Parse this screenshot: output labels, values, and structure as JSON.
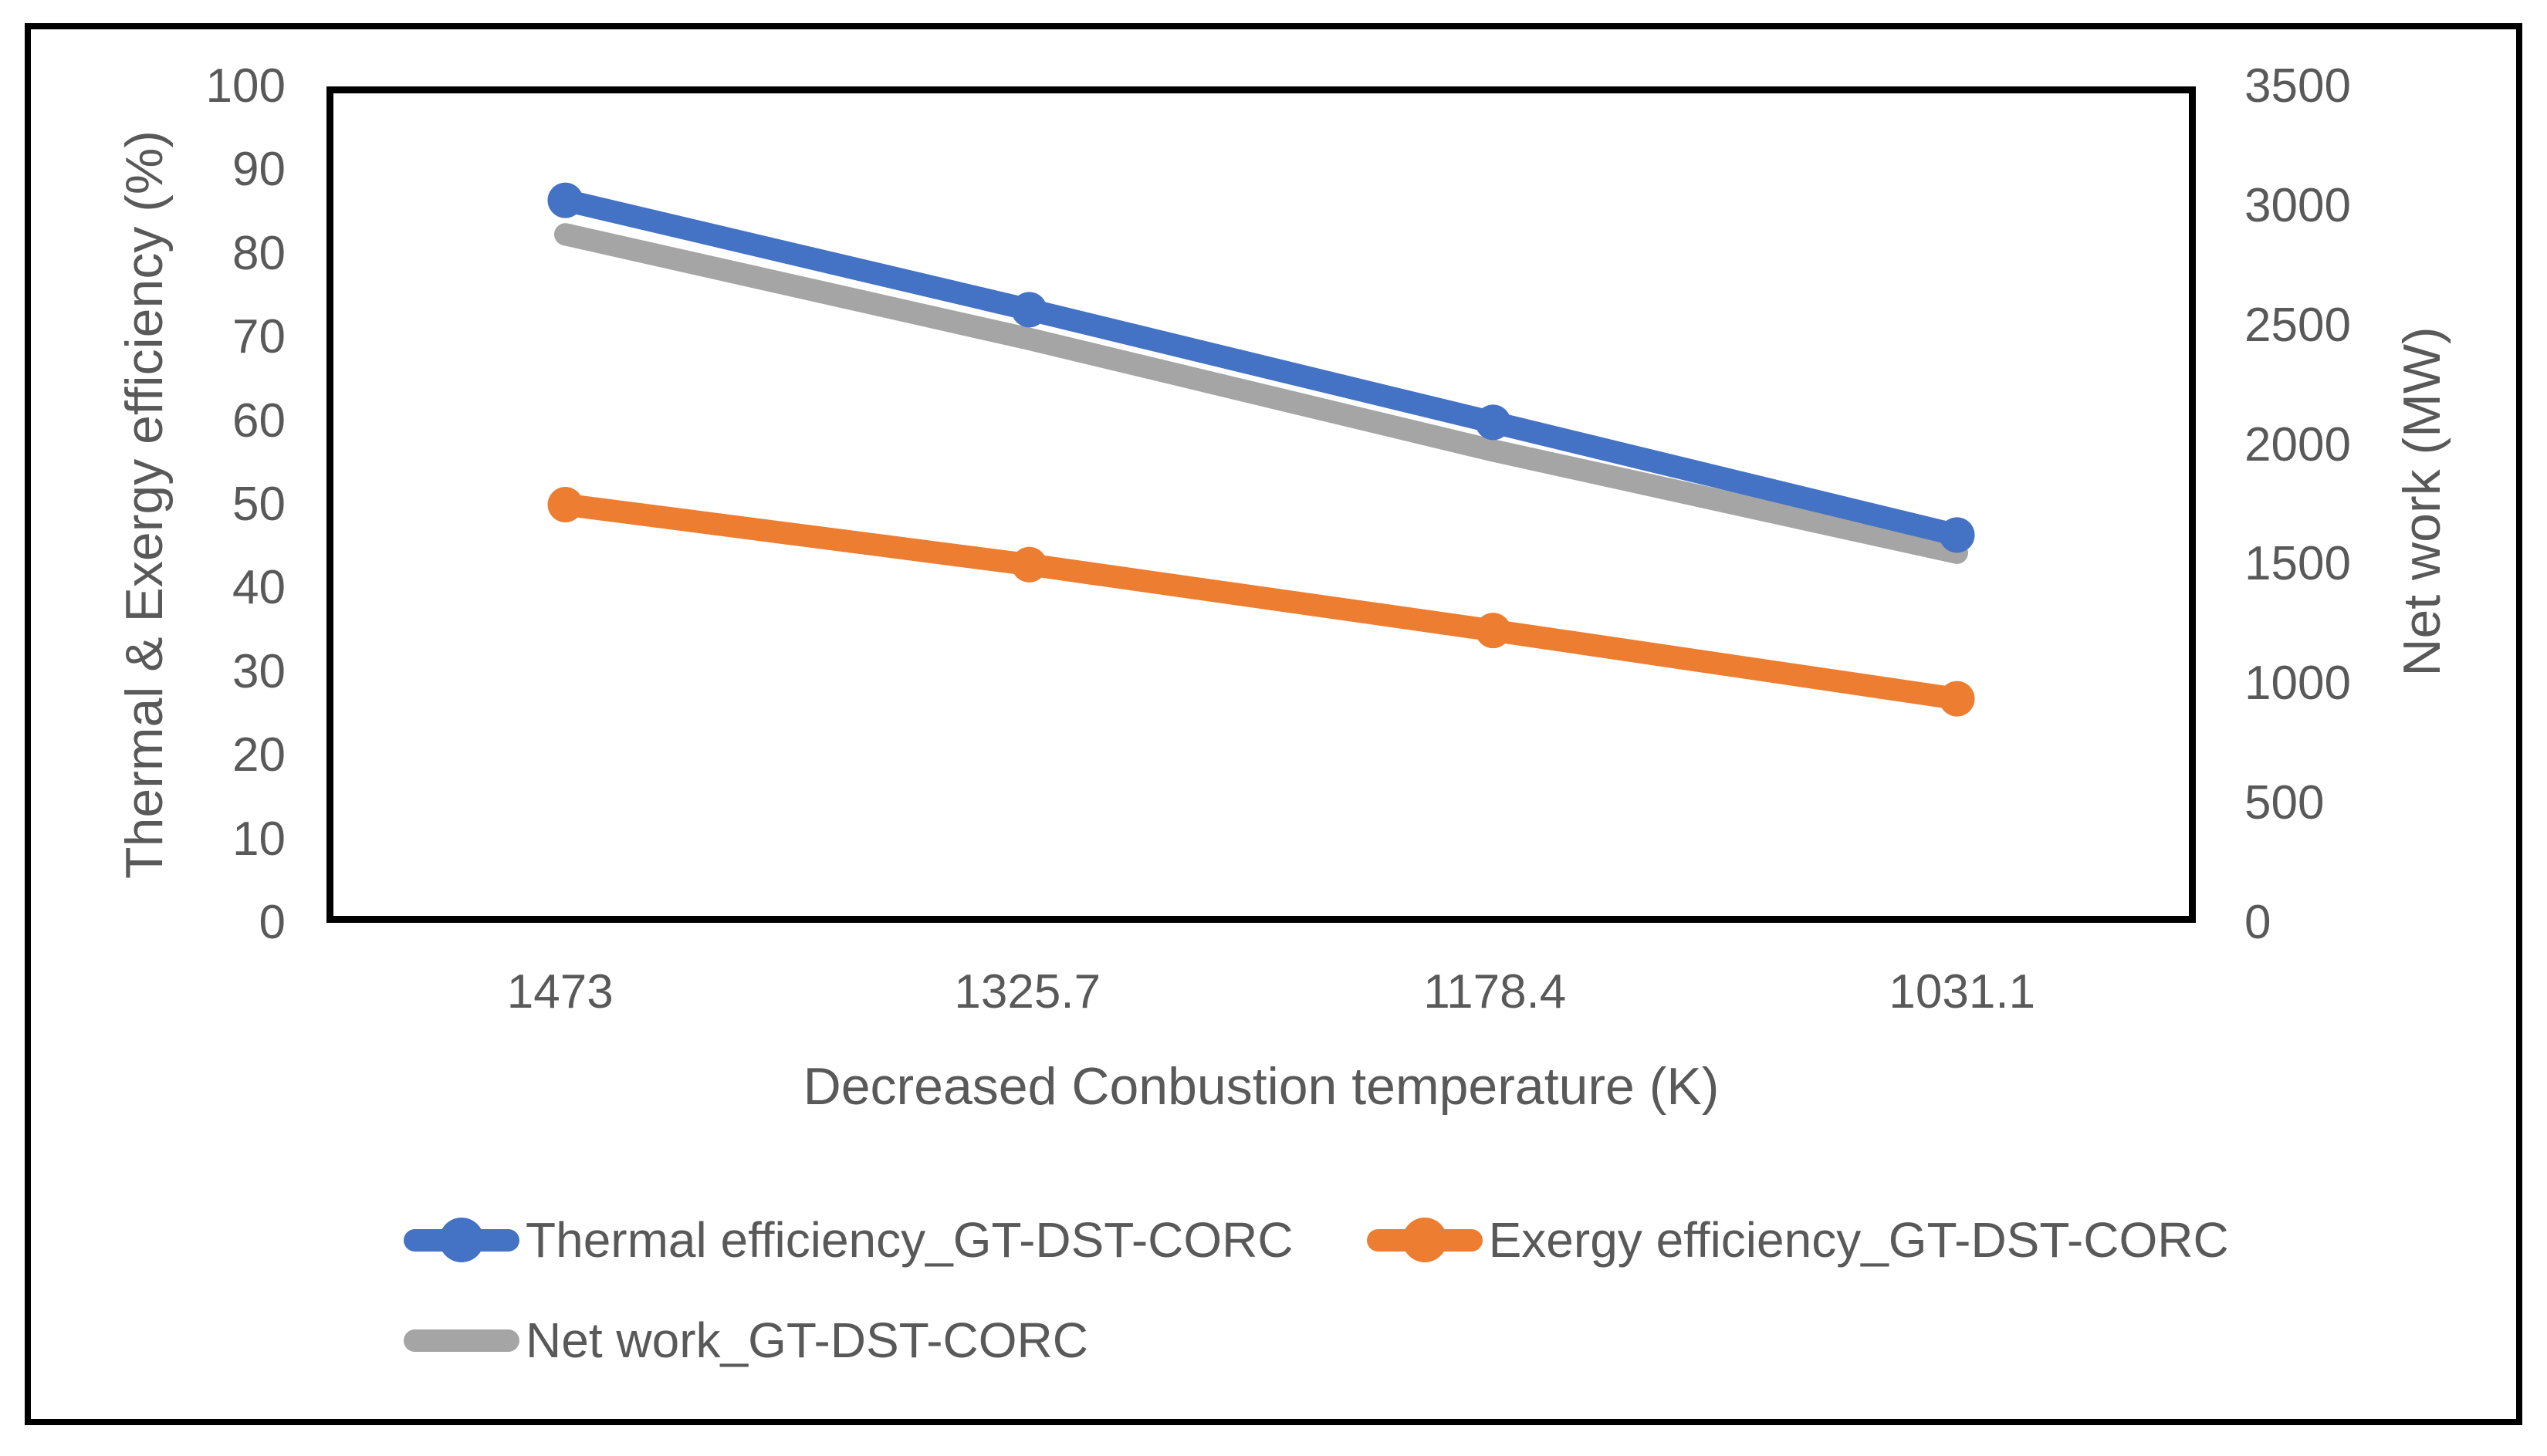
{
  "chart_data": {
    "type": "line",
    "categories": [
      "1473",
      "1325.7",
      "1178.4",
      "1031.1"
    ],
    "xlabel": "Decreased Conbustion temperature (K)",
    "left_ylabel": "Thermal & Exergy efficiency (%)",
    "right_ylabel": "Net work (MW)",
    "left_ylim": [
      0,
      100
    ],
    "right_ylim": [
      0,
      3500
    ],
    "left_ticks": [
      100,
      90,
      80,
      70,
      60,
      50,
      40,
      30,
      20,
      10,
      0
    ],
    "right_ticks": [
      3500,
      3000,
      2500,
      2000,
      1500,
      1000,
      500,
      0
    ],
    "grid": false,
    "legend_position": "bottom",
    "series": [
      {
        "name": "Thermal efficiency_GT-DST-CORC",
        "axis": "left",
        "color": "#4472C4",
        "marker": "circle",
        "values": [
          87,
          73.7,
          60,
          46.3
        ]
      },
      {
        "name": "Exergy efficiency_GT-DST-CORC",
        "axis": "left",
        "color": "#ED7D31",
        "marker": "circle",
        "values": [
          50,
          42.7,
          34.7,
          26.4
        ]
      },
      {
        "name": "Net work_GT-DST-CORC",
        "axis": "right",
        "color": "#A5A5A5",
        "marker": "none",
        "values": [
          2900,
          2455,
          1980,
          1545
        ]
      }
    ]
  },
  "colors": {
    "text": "#595959",
    "axis_line": "#000000",
    "background": "#FFFFFF"
  }
}
